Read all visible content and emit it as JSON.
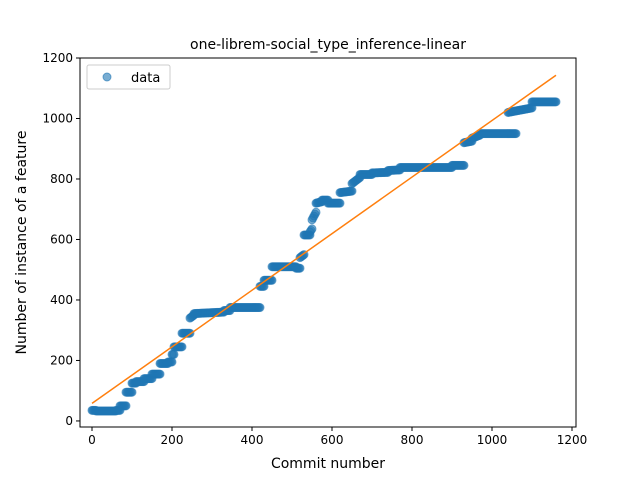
{
  "chart_data": {
    "type": "scatter",
    "title": "one-librem-social_type_inference-linear",
    "xlabel": "Commit number",
    "ylabel": "Number of instance of a feature",
    "xlim": [
      -30,
      1210
    ],
    "ylim": [
      -20,
      1200
    ],
    "xticks": [
      0,
      200,
      400,
      600,
      800,
      1000,
      1200
    ],
    "yticks": [
      0,
      200,
      400,
      600,
      800,
      1000,
      1200
    ],
    "grid": false,
    "legend": {
      "placement": "top-left",
      "entries": [
        {
          "label": "data",
          "marker": "circle"
        }
      ]
    },
    "series": [
      {
        "name": "data",
        "style": "points",
        "color": "#1f77b4",
        "alpha": 0.6,
        "segments": [
          [
            0,
            35,
            10,
            35
          ],
          [
            10,
            33,
            60,
            33
          ],
          [
            60,
            35,
            70,
            35
          ],
          [
            70,
            50,
            85,
            50
          ],
          [
            85,
            95,
            100,
            95
          ],
          [
            100,
            125,
            110,
            125
          ],
          [
            110,
            130,
            130,
            130
          ],
          [
            130,
            140,
            150,
            140
          ],
          [
            150,
            155,
            170,
            155
          ],
          [
            170,
            190,
            190,
            190
          ],
          [
            190,
            195,
            200,
            195
          ],
          [
            200,
            220,
            205,
            220
          ],
          [
            205,
            245,
            225,
            245
          ],
          [
            225,
            290,
            245,
            290
          ],
          [
            245,
            340,
            255,
            350
          ],
          [
            255,
            355,
            330,
            360
          ],
          [
            330,
            365,
            345,
            365
          ],
          [
            345,
            375,
            420,
            375
          ],
          [
            420,
            445,
            430,
            445
          ],
          [
            430,
            465,
            450,
            465
          ],
          [
            450,
            510,
            510,
            510
          ],
          [
            510,
            505,
            520,
            505
          ],
          [
            520,
            540,
            530,
            550
          ],
          [
            530,
            615,
            545,
            615
          ],
          [
            545,
            625,
            550,
            635
          ],
          [
            550,
            665,
            560,
            690
          ],
          [
            560,
            720,
            575,
            725
          ],
          [
            575,
            730,
            590,
            730
          ],
          [
            590,
            720,
            620,
            720
          ],
          [
            620,
            755,
            650,
            760
          ],
          [
            650,
            785,
            670,
            805
          ],
          [
            670,
            815,
            700,
            815
          ],
          [
            700,
            820,
            740,
            822
          ],
          [
            740,
            828,
            770,
            830
          ],
          [
            770,
            838,
            900,
            838
          ],
          [
            900,
            845,
            930,
            845
          ],
          [
            930,
            920,
            950,
            925
          ],
          [
            950,
            935,
            970,
            945
          ],
          [
            970,
            950,
            1060,
            950
          ],
          [
            1040,
            1020,
            1100,
            1035
          ],
          [
            1100,
            1055,
            1160,
            1055
          ]
        ]
      },
      {
        "name": "",
        "style": "line",
        "color": "#ff7f0e",
        "points": [
          [
            0,
            58
          ],
          [
            1160,
            1143
          ]
        ]
      }
    ]
  }
}
